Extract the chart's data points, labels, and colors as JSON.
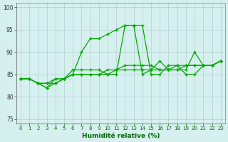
{
  "title": "",
  "xlabel": "Humidité relative (%)",
  "ylabel": "",
  "bg_color": "#d6f0ef",
  "grid_color": "#b0d0d0",
  "line_color": "#00aa00",
  "xlim": [
    -0.5,
    23.5
  ],
  "ylim": [
    74,
    101
  ],
  "yticks": [
    75,
    80,
    85,
    90,
    95,
    100
  ],
  "xticks": [
    0,
    1,
    2,
    3,
    4,
    5,
    6,
    7,
    8,
    9,
    10,
    11,
    12,
    13,
    14,
    15,
    16,
    17,
    18,
    19,
    20,
    21,
    22,
    23
  ],
  "series": [
    [
      84,
      84,
      83,
      83,
      84,
      84,
      85,
      85,
      85,
      85,
      85,
      86,
      86,
      86,
      86,
      86,
      86,
      86,
      87,
      87,
      87,
      87,
      87,
      88
    ],
    [
      84,
      84,
      83,
      82,
      83,
      84,
      85,
      90,
      93,
      93,
      94,
      95,
      96,
      96,
      85,
      86,
      88,
      86,
      86,
      86,
      90,
      87,
      87,
      88
    ],
    [
      84,
      84,
      83,
      82,
      84,
      84,
      86,
      86,
      86,
      86,
      85,
      85,
      96,
      96,
      96,
      85,
      85,
      87,
      87,
      85,
      85,
      87,
      87,
      88
    ],
    [
      84,
      84,
      83,
      83,
      83,
      84,
      85,
      85,
      85,
      85,
      86,
      86,
      87,
      87,
      87,
      87,
      86,
      86,
      86,
      87,
      87,
      87,
      87,
      88
    ]
  ]
}
